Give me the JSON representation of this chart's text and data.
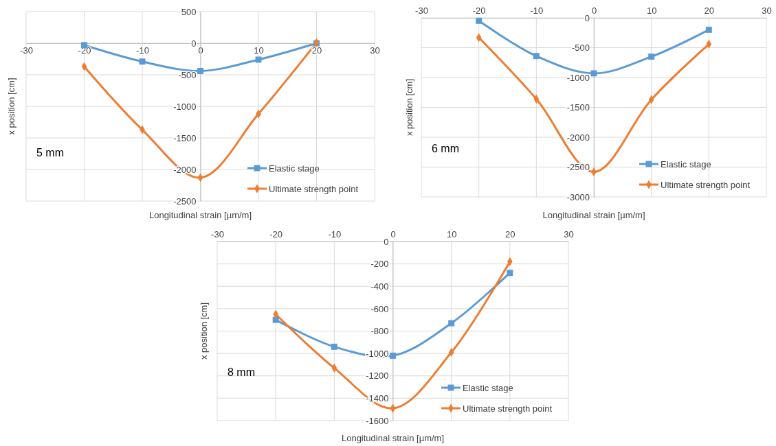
{
  "chart_data": [
    {
      "type": "line",
      "xlabel": "Longitudinal strain [µm/m]",
      "ylabel": "x position [cm]",
      "annotations": [
        "5 mm"
      ],
      "xlim": [
        -30,
        30
      ],
      "xticks": [
        -30,
        -20,
        -10,
        0,
        10,
        20,
        30
      ],
      "ylim": [
        -2500,
        500
      ],
      "yticks": [
        -2500,
        -2000,
        -1500,
        -1000,
        -500,
        0,
        500
      ],
      "grid": true,
      "legend": "bottom right",
      "x": [
        -20,
        -10,
        0,
        10,
        20
      ],
      "series": [
        {
          "name": "Elastic stage",
          "color": "#5b9bd5",
          "marker": "square",
          "values": [
            -30,
            -290,
            -440,
            -260,
            0
          ]
        },
        {
          "name": "Ultimate strength point",
          "color": "#ed7d31",
          "marker": "diamond",
          "values": [
            -370,
            -1370,
            -2130,
            -1120,
            10
          ]
        }
      ]
    },
    {
      "type": "line",
      "xlabel": "Longitudinal strain [µm/m]",
      "ylabel": "x position [cm]",
      "annotations": [
        "6 mm"
      ],
      "xlim": [
        -30,
        30
      ],
      "xticks": [
        -30,
        -20,
        -10,
        0,
        10,
        20,
        30
      ],
      "ylim": [
        -3000,
        0
      ],
      "yticks": [
        -3000,
        -2500,
        -2000,
        -1500,
        -1000,
        -500,
        0
      ],
      "grid": true,
      "legend": "bottom right",
      "x": [
        -20,
        -10,
        0,
        10,
        20
      ],
      "series": [
        {
          "name": "Elastic stage",
          "color": "#5b9bd5",
          "marker": "square",
          "values": [
            -50,
            -640,
            -930,
            -650,
            -200
          ]
        },
        {
          "name": "Ultimate strength point",
          "color": "#ed7d31",
          "marker": "diamond",
          "values": [
            -330,
            -1360,
            -2580,
            -1370,
            -440
          ]
        }
      ]
    },
    {
      "type": "line",
      "xlabel": "Longitudinal strain [µm/m]",
      "ylabel": "x position [cm]",
      "annotations": [
        "8 mm"
      ],
      "xlim": [
        -30,
        30
      ],
      "xticks": [
        -30,
        -20,
        -10,
        0,
        10,
        20,
        30
      ],
      "ylim": [
        -1600,
        0
      ],
      "yticks": [
        -1600,
        -1400,
        -1200,
        -1000,
        -800,
        -600,
        -400,
        -200,
        0
      ],
      "grid": true,
      "legend": "bottom right",
      "x": [
        -20,
        -10,
        0,
        10,
        20
      ],
      "series": [
        {
          "name": "Elastic stage",
          "color": "#5b9bd5",
          "marker": "square",
          "values": [
            -700,
            -940,
            -1020,
            -730,
            -280
          ]
        },
        {
          "name": "Ultimate strength point",
          "color": "#ed7d31",
          "marker": "diamond",
          "values": [
            -650,
            -1130,
            -1490,
            -990,
            -180
          ]
        }
      ]
    }
  ]
}
